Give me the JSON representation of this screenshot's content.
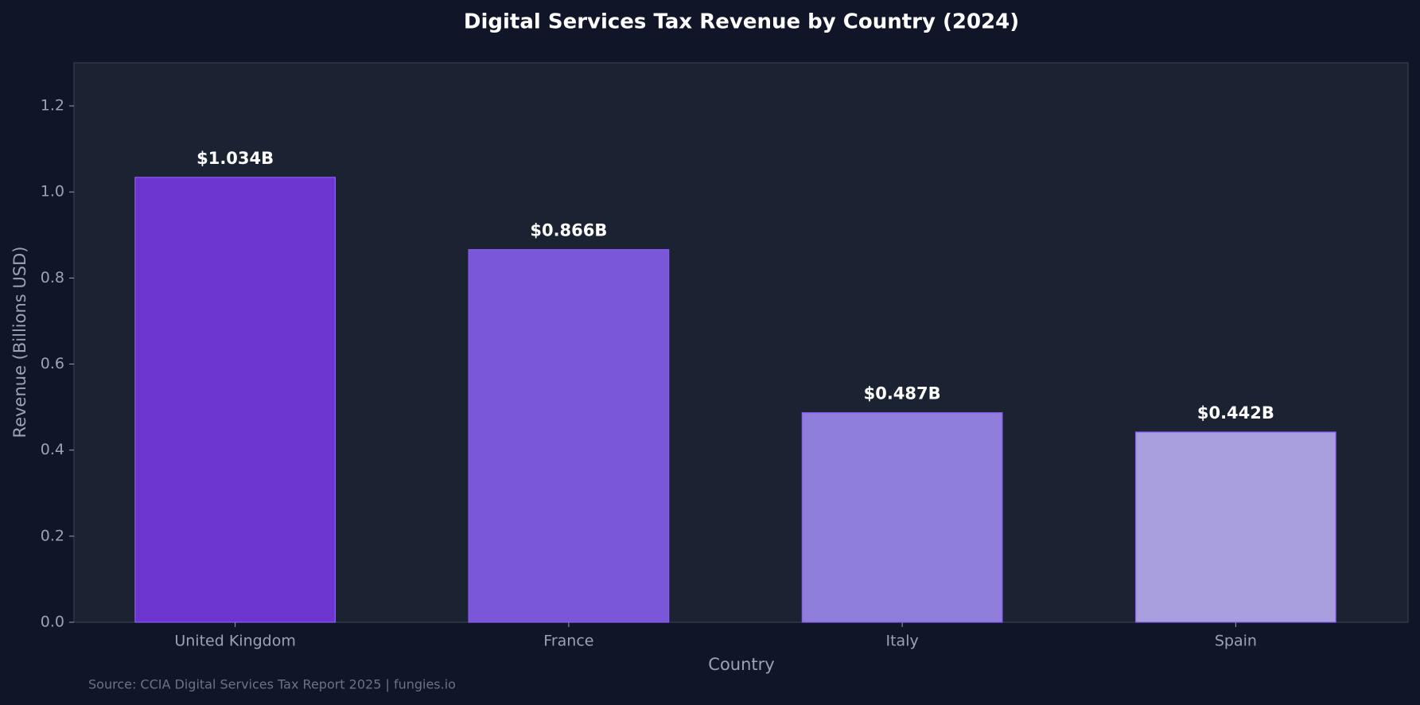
{
  "chart_data": {
    "type": "bar",
    "title": "Digital Services Tax Revenue by Country (2024)",
    "x_label": "Country",
    "y_label": "Revenue (Billions USD)",
    "categories": [
      "United Kingdom",
      "France",
      "Italy",
      "Spain"
    ],
    "values": [
      1.034,
      0.866,
      0.487,
      0.442
    ],
    "value_labels": [
      "$1.034B",
      "$0.866B",
      "$0.487B",
      "$0.442B"
    ],
    "colors": [
      "#6c35cf",
      "#7a57d8",
      "#8f7ddb",
      "#a89ddd"
    ],
    "ylim": [
      0,
      1.3
    ],
    "yticks": [
      {
        "value": 0,
        "label": "0.0"
      },
      0.2,
      0.4,
      0.6,
      0.8,
      {
        "value": 1,
        "label": "1.0"
      },
      1.2
    ],
    "grid": false,
    "source": "Source: CCIA Digital Services Tax Report 2025 | fungies.io"
  }
}
